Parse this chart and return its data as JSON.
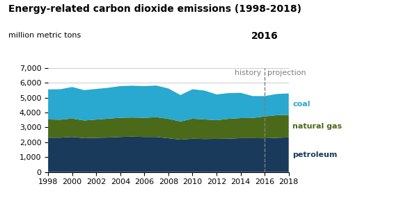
{
  "title": "Energy-related carbon dioxide emissions (1998-2018)",
  "subtitle": "million metric tons",
  "years": [
    1998,
    1999,
    2000,
    2001,
    2002,
    2003,
    2004,
    2005,
    2006,
    2007,
    2008,
    2009,
    2010,
    2011,
    2012,
    2013,
    2014,
    2015,
    2016,
    2017,
    2018
  ],
  "petroleum": [
    2310,
    2310,
    2360,
    2280,
    2300,
    2320,
    2360,
    2380,
    2360,
    2360,
    2270,
    2180,
    2240,
    2220,
    2230,
    2240,
    2280,
    2280,
    2270,
    2300,
    2330
  ],
  "natural_gas": [
    1230,
    1210,
    1240,
    1190,
    1230,
    1270,
    1290,
    1290,
    1290,
    1330,
    1310,
    1220,
    1350,
    1320,
    1260,
    1340,
    1350,
    1360,
    1470,
    1520,
    1520
  ],
  "coal": [
    2020,
    2050,
    2120,
    2040,
    2060,
    2080,
    2130,
    2140,
    2130,
    2130,
    2040,
    1780,
    1980,
    1940,
    1730,
    1730,
    1700,
    1470,
    1370,
    1430,
    1440
  ],
  "divider_year": 2016,
  "ylim": [
    0,
    7000
  ],
  "yticks": [
    0,
    1000,
    2000,
    3000,
    4000,
    5000,
    6000,
    7000
  ],
  "color_petroleum": "#1a3a5c",
  "color_natural_gas": "#4a6a1a",
  "color_coal": "#29a8d0",
  "bg_color": "#ffffff",
  "grid_color": "#cccccc",
  "label_coal": "coal",
  "label_natural_gas": "natural gas",
  "label_petroleum": "petroleum",
  "history_label": "history",
  "projection_label": "projection",
  "divider_label": "2016",
  "title_fontsize": 10,
  "subtitle_fontsize": 8,
  "axis_fontsize": 8,
  "annotation_fontsize": 8,
  "label_fontsize": 8
}
